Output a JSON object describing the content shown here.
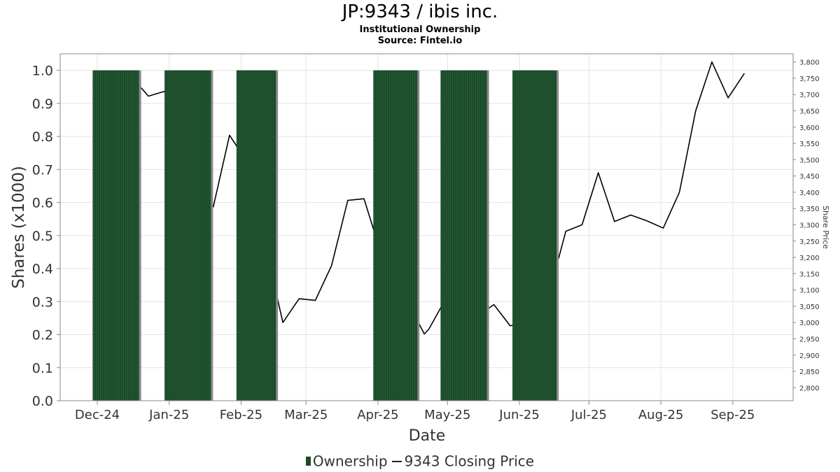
{
  "header": {
    "title": "JP:9343 / ibis inc.",
    "subtitle": "Institutional Ownership",
    "source": "Source: Fintel.io"
  },
  "legend": {
    "ownership": "Ownership",
    "price": "9343 Closing Price"
  },
  "colors": {
    "bar": "#1b4a2a",
    "bar_stripe": "#2f6b3d",
    "bar_shadow": "#8a8a8a",
    "price_line": "#000000",
    "grid": "#e3e3e3"
  },
  "chart_data": {
    "type": "bar",
    "title": "JP:9343 / ibis inc.",
    "xlabel": "Date",
    "ylabel": "Shares (x1000)",
    "y2label": "Share Price",
    "ylim": [
      0,
      1.05
    ],
    "y2lim": [
      2760,
      3825
    ],
    "xlim": [
      "2024-11-15",
      "2025-09-27"
    ],
    "grid": true,
    "legend_position": "bottom",
    "y_ticks": [
      "0.0",
      "0.1",
      "0.2",
      "0.3",
      "0.4",
      "0.5",
      "0.6",
      "0.7",
      "0.8",
      "0.9",
      "1.0"
    ],
    "y2_ticks": [
      "2,800",
      "2,850",
      "2,900",
      "2,950",
      "3,000",
      "3,050",
      "3,100",
      "3,150",
      "3,200",
      "3,250",
      "3,300",
      "3,350",
      "3,400",
      "3,450",
      "3,500",
      "3,550",
      "3,600",
      "3,650",
      "3,700",
      "3,750",
      "3,800"
    ],
    "x_ticks": [
      {
        "date": "2024-12-01",
        "label": "Dec-24"
      },
      {
        "date": "2025-01-01",
        "label": "Jan-25"
      },
      {
        "date": "2025-02-01",
        "label": "Feb-25"
      },
      {
        "date": "2025-03-01",
        "label": "Mar-25"
      },
      {
        "date": "2025-04-01",
        "label": "Apr-25"
      },
      {
        "date": "2025-05-01",
        "label": "May-25"
      },
      {
        "date": "2025-06-01",
        "label": "Jun-25"
      },
      {
        "date": "2025-07-01",
        "label": "Jul-25"
      },
      {
        "date": "2025-08-01",
        "label": "Aug-25"
      },
      {
        "date": "2025-09-01",
        "label": "Sep-25"
      }
    ],
    "series": [
      {
        "name": "Ownership",
        "type": "bar",
        "bars": [
          {
            "start": "2024-11-29",
            "end": "2024-12-19",
            "value": 1.0
          },
          {
            "start": "2024-12-30",
            "end": "2025-01-19",
            "value": 1.0
          },
          {
            "start": "2025-01-30",
            "end": "2025-02-16",
            "value": 1.0
          },
          {
            "start": "2025-03-30",
            "end": "2025-04-18",
            "value": 1.0
          },
          {
            "start": "2025-04-28",
            "end": "2025-05-18",
            "value": 1.0
          },
          {
            "start": "2025-05-29",
            "end": "2025-06-17",
            "value": 1.0
          }
        ]
      },
      {
        "name": "9343 Closing Price",
        "type": "line",
        "points": [
          {
            "date": "2024-11-29",
            "value": 3725
          },
          {
            "date": "2024-12-20",
            "value": 3720
          },
          {
            "date": "2024-12-23",
            "value": 3695
          },
          {
            "date": "2024-12-30",
            "value": 3710
          },
          {
            "date": "2025-01-06",
            "value": 3560
          },
          {
            "date": "2025-01-20",
            "value": 3355
          },
          {
            "date": "2025-01-27",
            "value": 3575
          },
          {
            "date": "2025-02-03",
            "value": 3500
          },
          {
            "date": "2025-02-19",
            "value": 3000
          },
          {
            "date": "2025-02-26",
            "value": 3073
          },
          {
            "date": "2025-03-05",
            "value": 3068
          },
          {
            "date": "2025-03-12",
            "value": 3175
          },
          {
            "date": "2025-03-19",
            "value": 3375
          },
          {
            "date": "2025-03-26",
            "value": 3380
          },
          {
            "date": "2025-04-02",
            "value": 3220
          },
          {
            "date": "2025-04-21",
            "value": 2965
          },
          {
            "date": "2025-04-23",
            "value": 2980
          },
          {
            "date": "2025-04-30",
            "value": 3070
          },
          {
            "date": "2025-05-07",
            "value": 3060
          },
          {
            "date": "2025-05-14",
            "value": 3020
          },
          {
            "date": "2025-05-21",
            "value": 3055
          },
          {
            "date": "2025-05-28",
            "value": 2990
          },
          {
            "date": "2025-06-04",
            "value": 3000
          },
          {
            "date": "2025-06-18",
            "value": 3200
          },
          {
            "date": "2025-06-21",
            "value": 3280
          },
          {
            "date": "2025-06-28",
            "value": 3300
          },
          {
            "date": "2025-07-05",
            "value": 3460
          },
          {
            "date": "2025-07-12",
            "value": 3310
          },
          {
            "date": "2025-07-19",
            "value": 3330
          },
          {
            "date": "2025-07-26",
            "value": 3312
          },
          {
            "date": "2025-08-02",
            "value": 3290
          },
          {
            "date": "2025-08-09",
            "value": 3400
          },
          {
            "date": "2025-08-16",
            "value": 3650
          },
          {
            "date": "2025-08-23",
            "value": 3800
          },
          {
            "date": "2025-08-30",
            "value": 3690
          },
          {
            "date": "2025-09-06",
            "value": 3765
          }
        ]
      }
    ]
  }
}
